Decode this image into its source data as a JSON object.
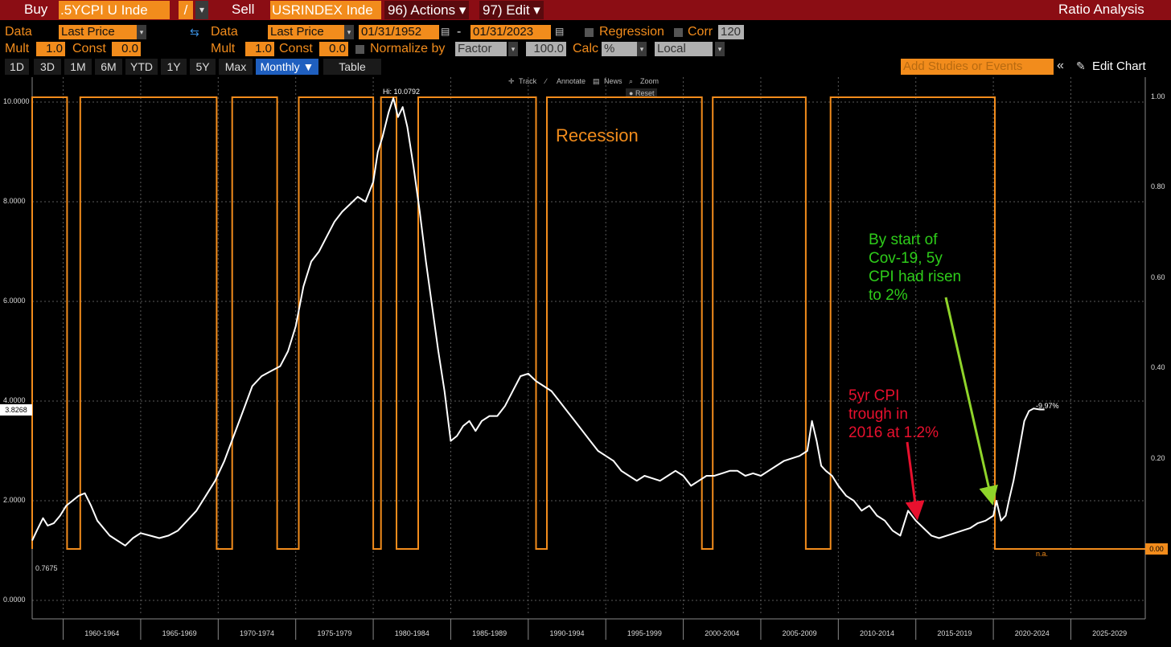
{
  "topbar": {
    "buy": "Buy",
    "ticker1": ".5YCPI U Inde",
    "op": "/",
    "sell": "Sell",
    "ticker2": "USRINDEX Inde",
    "actions": "96) Actions ▾",
    "edit": "97) Edit ▾",
    "title": "Ratio Analysis"
  },
  "row1": {
    "data_label": "Data",
    "data_value": "Last Price",
    "data2_label": "Data",
    "data2_value": "Last Price",
    "start_date": "01/31/1952",
    "dash": "-",
    "end_date": "01/31/2023",
    "regression": "Regression",
    "corr": "Corr",
    "corr_value": "120"
  },
  "row2": {
    "mult_label": "Mult",
    "mult_value": "1.0",
    "const_label": "Const",
    "const_value": "0.0",
    "mult2_label": "Mult",
    "mult2_value": "1.0",
    "const2_label": "Const",
    "const2_value": "0.0",
    "normalize": "Normalize by",
    "factor": "Factor",
    "factor_value": "100.0",
    "calc": "Calc",
    "calc_value": "%",
    "local": "Local"
  },
  "tabs": [
    "1D",
    "3D",
    "1M",
    "6M",
    "YTD",
    "1Y",
    "5Y",
    "Max",
    "Monthly ▼",
    "Table"
  ],
  "toolbar": {
    "add_studies": "Add Studies or Events",
    "collapse": "«",
    "edit_chart": "Edit Chart",
    "track": "Track",
    "annotate": "Annotate",
    "news": "News",
    "zoom": "Zoom",
    "reset": "Reset"
  },
  "colors": {
    "accent": "#f28c1c",
    "topbar": "#8b0d14",
    "cpi_line": "#ffffff",
    "recession": "#f28c1c",
    "annot_green": "#2ecc1a",
    "annot_red": "#e8102e",
    "arrow_green": "#8fd42a"
  },
  "chart_data": {
    "type": "line",
    "left_axis": {
      "ticks": [
        "10.0000",
        "8.0000",
        "6.0000",
        "4.0000",
        "2.0000",
        "0.0000"
      ],
      "ylim": [
        0,
        10
      ]
    },
    "right_axis": {
      "ticks": [
        "1.00",
        "0.80",
        "0.60",
        "0.40",
        "0.20",
        "0.00"
      ],
      "ylim": [
        0,
        1
      ]
    },
    "x_labels": [
      "1960-1964",
      "1965-1969",
      "1970-1974",
      "1975-1979",
      "1980-1984",
      "1985-1989",
      "1990-1994",
      "1995-1999",
      "2000-2004",
      "2005-2009",
      "2010-2014",
      "2015-2019",
      "2020-2024",
      "2025-2029"
    ],
    "xlim": [
      1958.0,
      2029.8
    ],
    "cpi_series": {
      "x": [
        1958.0,
        1958.3,
        1958.7,
        1959.0,
        1959.4,
        1959.8,
        1960.2,
        1960.6,
        1961.0,
        1961.4,
        1961.8,
        1962.2,
        1962.6,
        1963.0,
        1963.5,
        1964.0,
        1964.5,
        1965.0,
        1965.6,
        1966.2,
        1966.8,
        1967.4,
        1968.0,
        1968.6,
        1969.2,
        1969.8,
        1970.4,
        1971.0,
        1971.6,
        1972.2,
        1972.8,
        1973.4,
        1974.0,
        1974.5,
        1975.0,
        1975.5,
        1976.0,
        1976.5,
        1977.0,
        1977.5,
        1978.0,
        1978.5,
        1979.0,
        1979.5,
        1980.0,
        1980.3,
        1980.6,
        1981.0,
        1981.3,
        1981.6,
        1981.9,
        1982.2,
        1982.6,
        1983.0,
        1983.4,
        1983.8,
        1984.2,
        1984.6,
        1985.0,
        1985.4,
        1985.8,
        1986.2,
        1986.6,
        1987.0,
        1987.5,
        1988.0,
        1988.5,
        1989.0,
        1989.5,
        1990.0,
        1990.5,
        1991.0,
        1991.5,
        1992.0,
        1992.5,
        1993.0,
        1993.5,
        1994.0,
        1994.5,
        1995.0,
        1995.5,
        1996.0,
        1996.5,
        1997.0,
        1997.5,
        1998.0,
        1998.5,
        1999.0,
        1999.5,
        2000.0,
        2000.5,
        2001.0,
        2001.5,
        2002.0,
        2002.5,
        2003.0,
        2003.5,
        2004.0,
        2004.5,
        2005.0,
        2005.5,
        2006.0,
        2006.5,
        2007.0,
        2007.5,
        2008.0,
        2008.3,
        2008.6,
        2008.9,
        2009.2,
        2009.6,
        2010.0,
        2010.5,
        2011.0,
        2011.5,
        2012.0,
        2012.5,
        2013.0,
        2013.5,
        2014.0,
        2014.5,
        2015.0,
        2015.5,
        2016.0,
        2016.5,
        2017.0,
        2017.5,
        2018.0,
        2018.5,
        2019.0,
        2019.5,
        2020.0,
        2020.2,
        2020.5,
        2020.8,
        2021.0,
        2021.3,
        2021.6,
        2022.0,
        2022.3,
        2022.6,
        2023.0,
        2023.3
      ],
      "y": [
        1.2,
        1.4,
        1.65,
        1.5,
        1.55,
        1.7,
        1.9,
        2.0,
        2.1,
        2.15,
        1.9,
        1.6,
        1.45,
        1.3,
        1.2,
        1.1,
        1.25,
        1.35,
        1.3,
        1.25,
        1.3,
        1.4,
        1.6,
        1.8,
        2.1,
        2.4,
        2.8,
        3.3,
        3.8,
        4.3,
        4.5,
        4.6,
        4.7,
        5.0,
        5.5,
        6.3,
        6.8,
        7.0,
        7.3,
        7.6,
        7.8,
        7.95,
        8.1,
        8.0,
        8.4,
        9.0,
        9.3,
        9.8,
        10.08,
        9.7,
        9.9,
        9.5,
        8.7,
        7.8,
        6.8,
        5.9,
        5.0,
        4.2,
        3.2,
        3.3,
        3.5,
        3.6,
        3.4,
        3.6,
        3.7,
        3.7,
        3.9,
        4.2,
        4.5,
        4.55,
        4.4,
        4.3,
        4.2,
        4.0,
        3.8,
        3.6,
        3.4,
        3.2,
        3.0,
        2.9,
        2.8,
        2.6,
        2.5,
        2.4,
        2.5,
        2.45,
        2.4,
        2.5,
        2.6,
        2.5,
        2.3,
        2.4,
        2.5,
        2.5,
        2.55,
        2.6,
        2.6,
        2.5,
        2.55,
        2.5,
        2.6,
        2.7,
        2.8,
        2.85,
        2.9,
        3.0,
        3.6,
        3.2,
        2.7,
        2.6,
        2.5,
        2.3,
        2.1,
        2.0,
        1.8,
        1.9,
        1.7,
        1.6,
        1.4,
        1.3,
        1.8,
        1.6,
        1.45,
        1.3,
        1.25,
        1.3,
        1.35,
        1.4,
        1.45,
        1.55,
        1.6,
        1.7,
        2.0,
        1.6,
        1.7,
        2.0,
        2.4,
        2.9,
        3.6,
        3.8,
        3.85,
        3.83,
        3.83
      ]
    },
    "recession_series": {
      "x": [
        1958.0,
        1958.0,
        1960.25,
        1960.25,
        1961.1,
        1961.1,
        1969.9,
        1969.9,
        1970.9,
        1970.9,
        1973.8,
        1973.8,
        1975.2,
        1975.2,
        1980.0,
        1980.0,
        1980.5,
        1980.5,
        1981.5,
        1981.5,
        1982.9,
        1982.9,
        1990.5,
        1990.5,
        1991.2,
        1991.2,
        2001.2,
        2001.2,
        2001.9,
        2001.9,
        2007.9,
        2007.9,
        2009.5,
        2009.5,
        2020.1,
        2020.1,
        2020.4,
        2020.4,
        2029.8
      ],
      "y": [
        0,
        1,
        1,
        0,
        0,
        1,
        1,
        0,
        0,
        1,
        1,
        0,
        0,
        1,
        1,
        0,
        0,
        1,
        1,
        0,
        0,
        1,
        1,
        0,
        0,
        1,
        1,
        0,
        0,
        1,
        1,
        0,
        0,
        1,
        1,
        0,
        0,
        0,
        0
      ]
    },
    "hi_label": "Hi: 10.0792",
    "last_value_label": "3.8268",
    "low_label": "0.7675",
    "end_label": "-9.97%",
    "na_label": "n.a.",
    "right_last_label": "0.00",
    "annotations": {
      "recession": "Recession",
      "green": [
        "By start of",
        "Cov-19, 5y",
        "CPI had risen",
        "to 2%"
      ],
      "red": [
        "5yr CPI",
        "trough in",
        "2016 at 1.2%"
      ]
    },
    "grid": true
  }
}
